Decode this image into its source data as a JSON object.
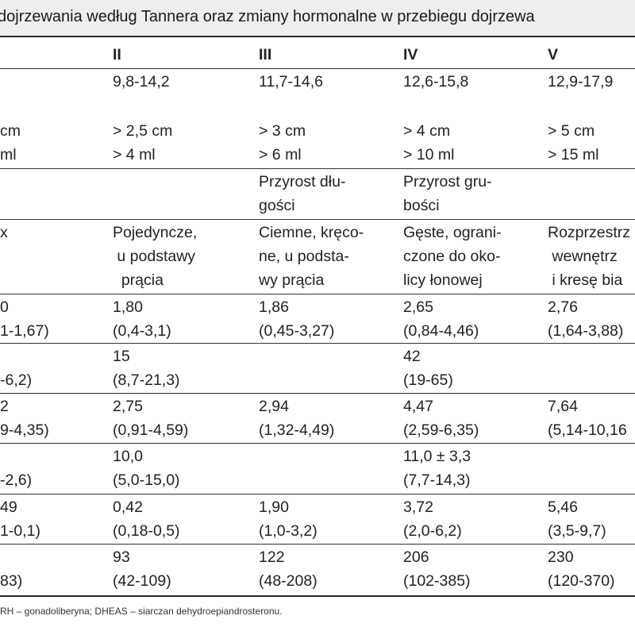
{
  "title": "dojrzewania według Tannera oraz zmiany hormonalne w przebiegu dojrzewa",
  "header": [
    "II",
    "III",
    "IV",
    "V"
  ],
  "rows": [
    {
      "c0": "",
      "c1": "9,8-14,2",
      "c2": "11,7-14,6",
      "c3": "12,6-15,8",
      "c4": "12,9-17,9"
    },
    {
      "c0": "cm\nml",
      "c1": "> 2,5 cm\n> 4 ml",
      "c2": "> 3 cm\n> 6 ml",
      "c3": "> 4 cm\n> 10 ml",
      "c4": "> 5 cm\n> 15 ml"
    },
    {
      "c0": "",
      "c1": "",
      "c2": "Przyrost dłu-\ngości",
      "c3": "Przyrost gru-\nbości",
      "c4": ""
    },
    {
      "c0": "x",
      "c1": "Pojedyncze,\n u podstawy\n  prącia",
      "c2": "Ciemne, kręco-\nne, u podsta-\nwy prącia",
      "c3": "Gęste, ograni-\nczone do oko-\nlicy łonowej",
      "c4": "Rozprzestrz\n wewnętrz\n i kresę bia"
    },
    {
      "c0": "0\n1-1,67)",
      "c1": "1,80\n(0,4-3,1)",
      "c2": "1,86\n(0,45-3,27)",
      "c3": "2,65\n(0,84-4,46)",
      "c4": "2,76\n(1,64-3,88)"
    },
    {
      "c0": "\n-6,2)",
      "c1": "15\n(8,7-21,3)",
      "c2": "",
      "c3": "42\n(19-65)",
      "c4": ""
    },
    {
      "c0": "2\n9-4,35)",
      "c1": "2,75\n(0,91-4,59)",
      "c2": "2,94\n(1,32-4,49)",
      "c3": "4,47\n(2,59-6,35)",
      "c4": "7,64\n(5,14-10,16"
    },
    {
      "c0": "\n-2,6)",
      "c1": "10,0\n(5,0-15,0)",
      "c2": "",
      "c3": "11,0 ± 3,3\n(7,7-14,3)",
      "c4": ""
    },
    {
      "c0": "49\n1-0,1)",
      "c1": "0,42\n(0,18-0,5)",
      "c2": "1,90\n(1,0-3,2)",
      "c3": "3,72\n(2,0-6,2)",
      "c4": "5,46\n(3,5-9,7)"
    },
    {
      "c0": "\n83)",
      "c1": "93\n(42-109)",
      "c2": "122\n(48-208)",
      "c3": "206\n(102-385)",
      "c4": "230\n(120-370)"
    }
  ],
  "footnote": "RH – gonadoliberyna; DHEAS – siarczan dehydroepiandrosteronu."
}
